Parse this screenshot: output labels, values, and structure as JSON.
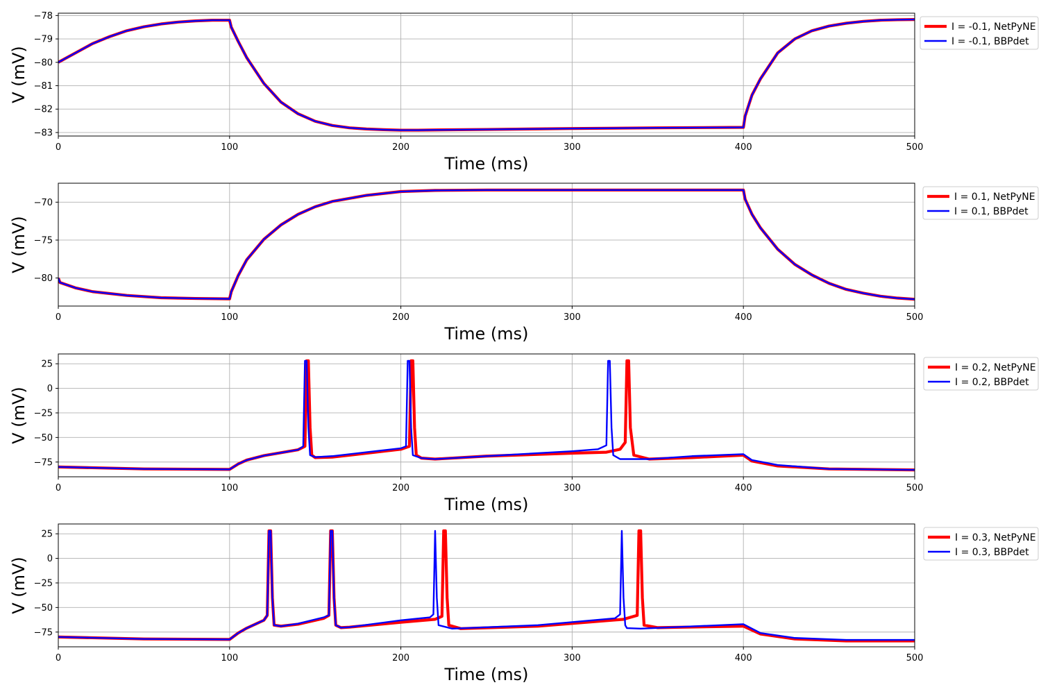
{
  "chart_data": [
    {
      "type": "line",
      "xlabel": "Time (ms)",
      "ylabel": "V (mV)",
      "xlim": [
        0,
        500
      ],
      "ylim": [
        -83.15,
        -77.9
      ],
      "xticks": [
        0,
        100,
        200,
        300,
        400,
        500
      ],
      "yticks": [
        -83,
        -82,
        -81,
        -80,
        -79,
        -78
      ],
      "grid": true,
      "legend": "outside-top-right",
      "series": [
        {
          "name": "I = -0.1, NetPyNE",
          "color": "#ff0000",
          "x": [
            0,
            10,
            20,
            30,
            40,
            50,
            60,
            70,
            80,
            90,
            100,
            101,
            105,
            110,
            120,
            130,
            140,
            150,
            160,
            170,
            180,
            190,
            200,
            210,
            220,
            250,
            300,
            350,
            399.5,
            400,
            401,
            405,
            410,
            420,
            430,
            440,
            450,
            460,
            470,
            480,
            490,
            500
          ],
          "y": [
            -80.0,
            -79.6,
            -79.2,
            -78.9,
            -78.65,
            -78.48,
            -78.36,
            -78.28,
            -78.23,
            -78.2,
            -78.2,
            -78.5,
            -79.1,
            -79.8,
            -80.9,
            -81.7,
            -82.2,
            -82.52,
            -82.7,
            -82.8,
            -82.85,
            -82.88,
            -82.9,
            -82.9,
            -82.89,
            -82.87,
            -82.83,
            -82.8,
            -82.78,
            -82.78,
            -82.3,
            -81.4,
            -80.7,
            -79.6,
            -79.0,
            -78.65,
            -78.45,
            -78.33,
            -78.25,
            -78.2,
            -78.18,
            -78.17
          ]
        },
        {
          "name": "I = -0.1, BBPdet",
          "color": "#0000ff",
          "x": [
            0,
            10,
            20,
            30,
            40,
            50,
            60,
            70,
            80,
            90,
            100,
            101,
            105,
            110,
            120,
            130,
            140,
            150,
            160,
            170,
            180,
            190,
            200,
            210,
            220,
            250,
            300,
            350,
            399.5,
            400,
            401,
            405,
            410,
            420,
            430,
            440,
            450,
            460,
            470,
            480,
            490,
            500
          ],
          "y": [
            -80.0,
            -79.6,
            -79.2,
            -78.9,
            -78.65,
            -78.48,
            -78.36,
            -78.28,
            -78.23,
            -78.2,
            -78.2,
            -78.5,
            -79.1,
            -79.8,
            -80.9,
            -81.7,
            -82.2,
            -82.52,
            -82.7,
            -82.8,
            -82.85,
            -82.88,
            -82.9,
            -82.9,
            -82.89,
            -82.87,
            -82.83,
            -82.8,
            -82.78,
            -82.78,
            -82.3,
            -81.4,
            -80.7,
            -79.6,
            -79.0,
            -78.65,
            -78.45,
            -78.33,
            -78.25,
            -78.2,
            -78.18,
            -78.17
          ]
        }
      ]
    },
    {
      "type": "line",
      "xlabel": "Time (ms)",
      "ylabel": "V (mV)",
      "xlim": [
        0,
        500
      ],
      "ylim": [
        -83.7,
        -67.5
      ],
      "xticks": [
        0,
        100,
        200,
        300,
        400,
        500
      ],
      "yticks": [
        -80,
        -75,
        -70
      ],
      "grid": true,
      "legend": "outside-top-right",
      "series": [
        {
          "name": "I = 0.1, NetPyNE",
          "color": "#ff0000",
          "x": [
            0,
            1,
            10,
            20,
            40,
            60,
            80,
            99.5,
            100,
            101,
            105,
            110,
            120,
            130,
            140,
            150,
            160,
            180,
            200,
            220,
            250,
            300,
            350,
            399.5,
            400,
            401,
            405,
            410,
            420,
            430,
            440,
            450,
            460,
            470,
            480,
            490,
            500
          ],
          "y": [
            -80.0,
            -80.6,
            -81.3,
            -81.8,
            -82.3,
            -82.6,
            -82.7,
            -82.75,
            -82.75,
            -81.8,
            -79.7,
            -77.6,
            -74.9,
            -73.0,
            -71.6,
            -70.6,
            -69.9,
            -69.1,
            -68.6,
            -68.45,
            -68.4,
            -68.4,
            -68.4,
            -68.4,
            -68.4,
            -69.6,
            -71.6,
            -73.4,
            -76.2,
            -78.2,
            -79.6,
            -80.7,
            -81.5,
            -82.0,
            -82.4,
            -82.65,
            -82.8
          ]
        },
        {
          "name": "I = 0.1, BBPdet",
          "color": "#0000ff",
          "x": [
            0,
            1,
            10,
            20,
            40,
            60,
            80,
            99.5,
            100,
            101,
            105,
            110,
            120,
            130,
            140,
            150,
            160,
            180,
            200,
            220,
            250,
            300,
            350,
            399.5,
            400,
            401,
            405,
            410,
            420,
            430,
            440,
            450,
            460,
            470,
            480,
            490,
            500
          ],
          "y": [
            -80.0,
            -80.6,
            -81.3,
            -81.8,
            -82.3,
            -82.6,
            -82.7,
            -82.75,
            -82.75,
            -81.8,
            -79.7,
            -77.6,
            -74.9,
            -73.0,
            -71.6,
            -70.6,
            -69.9,
            -69.1,
            -68.6,
            -68.45,
            -68.4,
            -68.4,
            -68.4,
            -68.4,
            -68.4,
            -69.6,
            -71.6,
            -73.4,
            -76.2,
            -78.2,
            -79.6,
            -80.7,
            -81.5,
            -82.0,
            -82.4,
            -82.65,
            -82.8
          ]
        }
      ]
    },
    {
      "type": "line",
      "xlabel": "Time (ms)",
      "ylabel": "V (mV)",
      "xlim": [
        0,
        500
      ],
      "ylim": [
        -90,
        35
      ],
      "xticks": [
        0,
        100,
        200,
        300,
        400,
        500
      ],
      "yticks": [
        -75,
        -50,
        -25,
        0,
        25
      ],
      "grid": true,
      "legend": "outside-top-right",
      "series": [
        {
          "name": "I = 0.2, NetPyNE",
          "color": "#ff0000",
          "x": [
            0,
            50,
            99.5,
            100,
            105,
            110,
            120,
            130,
            140,
            144,
            145,
            146,
            147,
            148,
            150,
            160,
            180,
            200,
            205,
            206,
            207,
            208,
            209,
            212,
            220,
            250,
            300,
            320,
            328,
            331,
            332,
            333,
            334,
            336,
            345,
            370,
            399.5,
            400,
            405,
            420,
            450,
            500
          ],
          "y": [
            -80.0,
            -82.0,
            -82.5,
            -82.5,
            -77.0,
            -73.0,
            -68.5,
            -65.5,
            -62.5,
            -59.0,
            28.0,
            28.0,
            -40.0,
            -68.0,
            -70.5,
            -70.0,
            -66.0,
            -62.0,
            -59.0,
            28.0,
            28.0,
            -40.0,
            -68.0,
            -71.0,
            -72.0,
            -69.0,
            -66.0,
            -65.0,
            -62.0,
            -55.0,
            28.0,
            28.0,
            -40.0,
            -68.0,
            -72.0,
            -70.5,
            -68.0,
            -68.0,
            -74.0,
            -79.0,
            -82.0,
            -83.0
          ]
        },
        {
          "name": "I = 0.2, BBPdet",
          "color": "#0000ff",
          "x": [
            0,
            50,
            99.5,
            100,
            105,
            110,
            120,
            130,
            140,
            143,
            144,
            145,
            146,
            147,
            150,
            160,
            180,
            200,
            203,
            204,
            205,
            206,
            207,
            212,
            220,
            250,
            300,
            315,
            320,
            321,
            322,
            323,
            324,
            328,
            345,
            370,
            399.5,
            400,
            405,
            420,
            450,
            500
          ],
          "y": [
            -80.0,
            -82.0,
            -82.5,
            -82.5,
            -77.0,
            -73.0,
            -68.5,
            -65.5,
            -62.5,
            -59.0,
            28.0,
            28.0,
            -40.0,
            -68.0,
            -70.0,
            -69.0,
            -65.0,
            -61.0,
            -59.0,
            28.0,
            28.0,
            -40.0,
            -68.0,
            -71.0,
            -72.0,
            -69.0,
            -64.0,
            -62.0,
            -58.0,
            28.0,
            28.0,
            -40.0,
            -68.0,
            -72.0,
            -72.0,
            -69.0,
            -67.0,
            -67.0,
            -73.0,
            -78.0,
            -82.0,
            -83.0
          ]
        }
      ]
    },
    {
      "type": "line",
      "xlabel": "Time (ms)",
      "ylabel": "V (mV)",
      "xlim": [
        0,
        500
      ],
      "ylim": [
        -90,
        35
      ],
      "xticks": [
        0,
        100,
        200,
        300,
        400,
        500
      ],
      "yticks": [
        -75,
        -50,
        -25,
        0,
        25
      ],
      "grid": true,
      "legend": "outside-top-right",
      "series": [
        {
          "name": "I = 0.3, NetPyNE",
          "color": "#ff0000",
          "x": [
            0,
            50,
            99.5,
            100,
            105,
            110,
            120,
            122,
            123,
            124,
            125,
            126,
            130,
            140,
            155,
            158,
            159,
            160,
            161,
            162,
            165,
            170,
            200,
            220,
            224,
            225,
            226,
            227,
            228,
            235,
            280,
            330,
            338,
            339,
            340,
            341,
            342,
            350,
            399.5,
            400,
            410,
            430,
            460,
            500
          ],
          "y": [
            -80.0,
            -82.0,
            -82.5,
            -82.5,
            -76.0,
            -71.0,
            -63.0,
            -58.0,
            28.0,
            28.0,
            -40.0,
            -68.0,
            -69.0,
            -67.0,
            -61.0,
            -58.0,
            28.0,
            28.0,
            -40.0,
            -68.0,
            -70.5,
            -70.0,
            -65.0,
            -62.0,
            -59.0,
            28.0,
            28.0,
            -40.0,
            -68.0,
            -71.5,
            -69.0,
            -62.0,
            -58.0,
            28.0,
            28.0,
            -40.0,
            -68.0,
            -70.5,
            -69.0,
            -69.0,
            -77.0,
            -82.0,
            -84.0,
            -84.0
          ]
        },
        {
          "name": "I = 0.3, BBPdet",
          "color": "#0000ff",
          "x": [
            0,
            50,
            99.5,
            100,
            105,
            110,
            120,
            122,
            123,
            124,
            125,
            126,
            130,
            140,
            155,
            158,
            159,
            160,
            161,
            162,
            165,
            170,
            200,
            217,
            219,
            220,
            221,
            222,
            230,
            280,
            325,
            328,
            329,
            330,
            331,
            332,
            340,
            399.5,
            400,
            410,
            430,
            460,
            500
          ],
          "y": [
            -80.0,
            -82.0,
            -82.5,
            -82.5,
            -76.0,
            -71.0,
            -63.0,
            -58.0,
            28.0,
            28.0,
            -40.0,
            -68.0,
            -69.0,
            -66.5,
            -60.0,
            -58.0,
            28.0,
            28.0,
            -40.0,
            -68.0,
            -70.5,
            -70.0,
            -63.0,
            -60.0,
            -57.0,
            28.0,
            -40.0,
            -68.0,
            -71.5,
            -68.0,
            -61.0,
            -57.0,
            28.0,
            -40.0,
            -68.0,
            -71.0,
            -71.5,
            -67.0,
            -67.0,
            -76.0,
            -81.0,
            -83.0,
            -83.0
          ]
        }
      ]
    }
  ]
}
